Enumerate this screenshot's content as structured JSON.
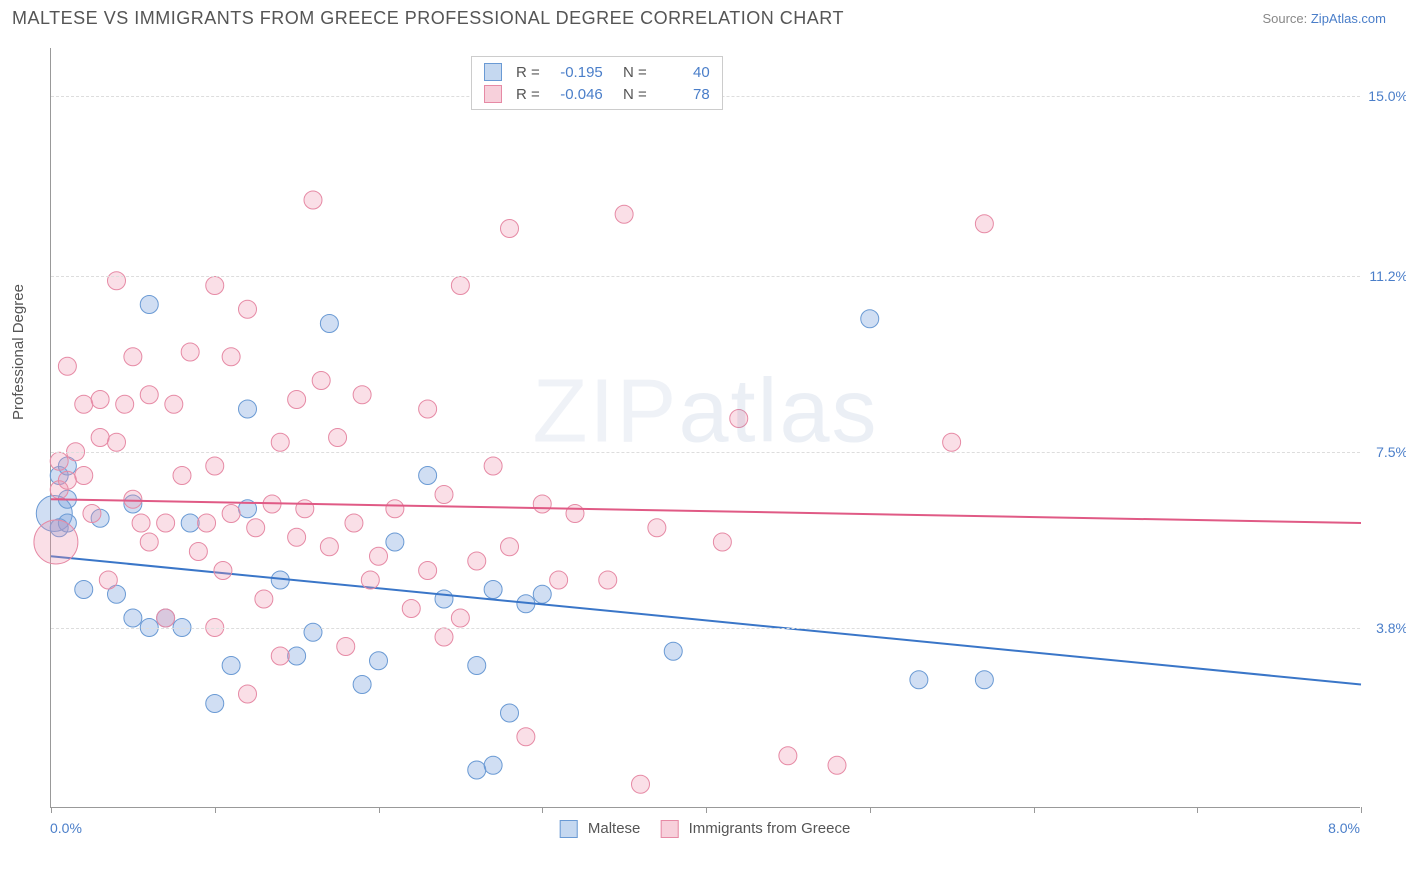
{
  "title": "MALTESE VS IMMIGRANTS FROM GREECE PROFESSIONAL DEGREE CORRELATION CHART",
  "source_prefix": "Source: ",
  "source_link": "ZipAtlas.com",
  "ylabel": "Professional Degree",
  "watermark_a": "ZIP",
  "watermark_b": "atlas",
  "chart": {
    "type": "scatter",
    "xlim": [
      0,
      8.0
    ],
    "ylim": [
      0,
      16.0
    ],
    "xtick_positions": [
      0,
      1,
      2,
      3,
      4,
      5,
      6,
      7,
      8
    ],
    "x_label_min": "0.0%",
    "x_label_max": "8.0%",
    "ytick_labels": [
      {
        "y": 3.8,
        "label": "3.8%"
      },
      {
        "y": 7.5,
        "label": "7.5%"
      },
      {
        "y": 11.2,
        "label": "11.2%"
      },
      {
        "y": 15.0,
        "label": "15.0%"
      }
    ],
    "grid_color": "#dddddd",
    "axis_color": "#999999",
    "background_color": "#ffffff",
    "series": [
      {
        "key": "maltese",
        "label": "Maltese",
        "color_fill": "rgba(120,160,220,0.35)",
        "color_stroke": "#6a9ad4",
        "swatch_fill": "#c5d8f0",
        "swatch_border": "#6a9ad4",
        "marker_radius": 9,
        "R": "-0.195",
        "N": "40",
        "trend": {
          "x1": 0,
          "y1": 5.3,
          "x2": 8.0,
          "y2": 2.6,
          "color": "#3a76c8",
          "width": 2
        },
        "points": [
          [
            0.02,
            6.2,
            18
          ],
          [
            0.05,
            5.9
          ],
          [
            0.05,
            7.0
          ],
          [
            0.1,
            6.5
          ],
          [
            0.1,
            7.2
          ],
          [
            0.1,
            6.0
          ],
          [
            0.6,
            10.6
          ],
          [
            0.2,
            4.6
          ],
          [
            0.3,
            6.1
          ],
          [
            0.85,
            6.0
          ],
          [
            0.5,
            4.0
          ],
          [
            0.6,
            3.8
          ],
          [
            0.7,
            4.0
          ],
          [
            1.0,
            2.2
          ],
          [
            1.1,
            3.0
          ],
          [
            1.2,
            8.4
          ],
          [
            1.2,
            6.3
          ],
          [
            1.5,
            3.2
          ],
          [
            1.6,
            3.7
          ],
          [
            1.7,
            10.2
          ],
          [
            1.9,
            2.6
          ],
          [
            2.0,
            3.1
          ],
          [
            2.1,
            5.6
          ],
          [
            2.3,
            7.0
          ],
          [
            2.4,
            4.4
          ],
          [
            2.6,
            3.0
          ],
          [
            2.6,
            0.8
          ],
          [
            2.7,
            0.9
          ],
          [
            2.8,
            2.0
          ],
          [
            2.9,
            4.3
          ],
          [
            3.0,
            4.5
          ],
          [
            2.7,
            4.6
          ],
          [
            3.8,
            3.3
          ],
          [
            5.0,
            10.3
          ],
          [
            5.3,
            2.7
          ],
          [
            5.7,
            2.7
          ],
          [
            0.4,
            4.5
          ],
          [
            0.5,
            6.4
          ],
          [
            0.8,
            3.8
          ],
          [
            1.4,
            4.8
          ]
        ]
      },
      {
        "key": "greece",
        "label": "Immigrants from Greece",
        "color_fill": "rgba(240,150,175,0.3)",
        "color_stroke": "#e68aa5",
        "swatch_fill": "#f7d0db",
        "swatch_border": "#e68aa5",
        "marker_radius": 9,
        "R": "-0.046",
        "N": "78",
        "trend": {
          "x1": 0,
          "y1": 6.5,
          "x2": 8.0,
          "y2": 6.0,
          "color": "#e05a85",
          "width": 2
        },
        "points": [
          [
            0.03,
            5.6,
            22
          ],
          [
            0.05,
            7.3
          ],
          [
            0.05,
            6.7
          ],
          [
            0.1,
            6.9
          ],
          [
            0.1,
            9.3
          ],
          [
            0.15,
            7.5
          ],
          [
            0.2,
            7.0
          ],
          [
            0.2,
            8.5
          ],
          [
            0.25,
            6.2
          ],
          [
            0.3,
            7.8
          ],
          [
            0.3,
            8.6
          ],
          [
            0.4,
            11.1
          ],
          [
            0.4,
            7.7
          ],
          [
            0.45,
            8.5
          ],
          [
            0.5,
            6.5
          ],
          [
            0.5,
            9.5
          ],
          [
            0.55,
            6.0
          ],
          [
            0.6,
            5.6
          ],
          [
            0.6,
            8.7
          ],
          [
            0.7,
            4.0
          ],
          [
            0.7,
            6.0
          ],
          [
            0.75,
            8.5
          ],
          [
            0.8,
            7.0
          ],
          [
            0.85,
            9.6
          ],
          [
            0.9,
            5.4
          ],
          [
            0.95,
            6.0
          ],
          [
            1.0,
            7.2
          ],
          [
            1.0,
            3.8
          ],
          [
            1.05,
            5.0
          ],
          [
            1.1,
            9.5
          ],
          [
            1.1,
            6.2
          ],
          [
            1.2,
            10.5
          ],
          [
            1.2,
            2.4
          ],
          [
            1.25,
            5.9
          ],
          [
            1.3,
            4.4
          ],
          [
            1.35,
            6.4
          ],
          [
            1.4,
            3.2
          ],
          [
            1.4,
            7.7
          ],
          [
            1.5,
            8.6
          ],
          [
            1.5,
            5.7
          ],
          [
            1.55,
            6.3
          ],
          [
            1.6,
            12.8
          ],
          [
            1.65,
            9.0
          ],
          [
            1.7,
            5.5
          ],
          [
            1.75,
            7.8
          ],
          [
            1.8,
            3.4
          ],
          [
            1.85,
            6.0
          ],
          [
            1.9,
            8.7
          ],
          [
            1.95,
            4.8
          ],
          [
            2.0,
            5.3
          ],
          [
            2.1,
            6.3
          ],
          [
            2.2,
            4.2
          ],
          [
            2.3,
            8.4
          ],
          [
            2.3,
            5.0
          ],
          [
            2.4,
            3.6
          ],
          [
            2.4,
            6.6
          ],
          [
            2.5,
            11.0
          ],
          [
            2.5,
            4.0
          ],
          [
            2.6,
            5.2
          ],
          [
            2.7,
            7.2
          ],
          [
            2.8,
            12.2
          ],
          [
            2.8,
            5.5
          ],
          [
            2.9,
            1.5
          ],
          [
            3.0,
            6.4
          ],
          [
            3.1,
            4.8
          ],
          [
            3.2,
            6.2
          ],
          [
            3.4,
            4.8
          ],
          [
            3.5,
            12.5
          ],
          [
            3.6,
            0.5
          ],
          [
            3.7,
            5.9
          ],
          [
            4.1,
            5.6
          ],
          [
            4.5,
            1.1
          ],
          [
            4.8,
            0.9
          ],
          [
            5.5,
            7.7
          ],
          [
            5.7,
            12.3
          ],
          [
            4.2,
            8.2
          ],
          [
            1.0,
            11.0
          ],
          [
            0.35,
            4.8
          ]
        ]
      }
    ]
  },
  "legend": {
    "r_prefix": "R =",
    "n_prefix": "N ="
  }
}
